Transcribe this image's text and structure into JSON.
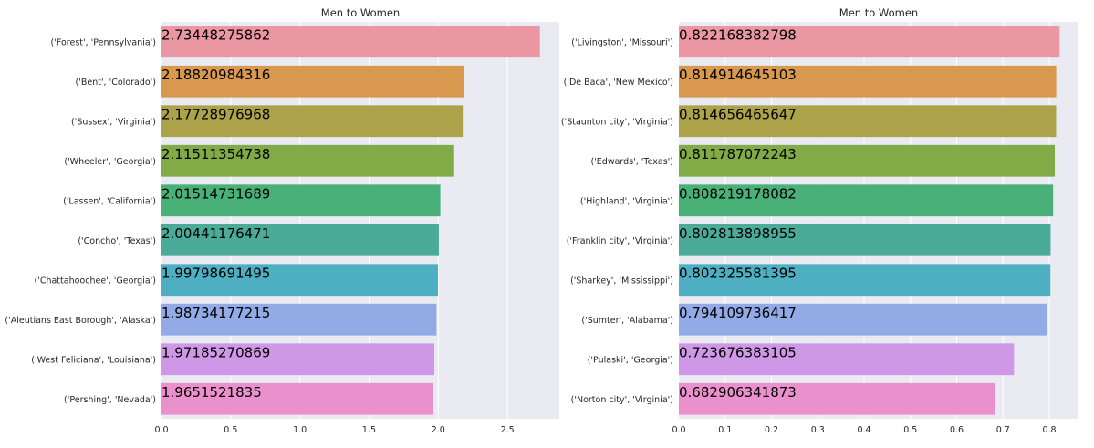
{
  "chart_data": [
    {
      "type": "bar",
      "orientation": "horizontal",
      "title": "Men to Women",
      "xlabel": "",
      "ylabel": "",
      "categories": [
        "('Forest', 'Pennsylvania')",
        "('Bent', 'Colorado')",
        "('Sussex', 'Virginia')",
        "('Wheeler', 'Georgia')",
        "('Lassen', 'California')",
        "('Concho', 'Texas')",
        "('Chattahoochee', 'Georgia')",
        "('Aleutians East Borough', 'Alaska')",
        "('West Feliciana', 'Louisiana')",
        "('Pershing', 'Nevada')"
      ],
      "values": [
        2.73448275862,
        2.18820984316,
        2.17728976968,
        2.11511354738,
        2.01514731689,
        2.00441176471,
        1.99798691495,
        1.98734177215,
        1.97185270869,
        1.9651521835
      ],
      "data_labels": [
        "2.73448275862",
        "2.18820984316",
        "2.17728976968",
        "2.11511354738",
        "2.01514731689",
        "2.00441176471",
        "1.99798691495",
        "1.98734177215",
        "1.97185270869",
        "1.9651521835"
      ],
      "xlim": [
        0,
        2.875
      ],
      "xticks": [
        0.0,
        0.5,
        1.0,
        1.5,
        2.0,
        2.5
      ],
      "xtick_labels": [
        "0.0",
        "0.5",
        "1.0",
        "1.5",
        "2.0",
        "2.5"
      ],
      "grid": true,
      "colors": [
        "#ea96a3",
        "#d8994f",
        "#aca24a",
        "#81ab47",
        "#49b078",
        "#4bab99",
        "#4eaec2",
        "#92abe7",
        "#cf98e7",
        "#ea90cd"
      ]
    },
    {
      "type": "bar",
      "orientation": "horizontal",
      "title": "Men to Women",
      "xlabel": "",
      "ylabel": "",
      "categories": [
        "('Livingston', 'Missouri')",
        "('De Baca', 'New Mexico')",
        "('Staunton city', 'Virginia')",
        "('Edwards', 'Texas')",
        "('Highland', 'Virginia')",
        "('Franklin city', 'Virginia')",
        "('Sharkey', 'Mississippi')",
        "('Sumter', 'Alabama')",
        "('Pulaski', 'Georgia')",
        "('Norton city', 'Virginia')"
      ],
      "values": [
        0.822168382798,
        0.814914645103,
        0.814656465647,
        0.811787072243,
        0.808219178082,
        0.802813898955,
        0.802325581395,
        0.794109736417,
        0.723676383105,
        0.682906341873
      ],
      "data_labels": [
        "0.822168382798",
        "0.814914645103",
        "0.814656465647",
        "0.811787072243",
        "0.808219178082",
        "0.802813898955",
        "0.802325581395",
        "0.794109736417",
        "0.723676383105",
        "0.682906341873"
      ],
      "xlim": [
        0,
        0.863
      ],
      "xticks": [
        0.0,
        0.1,
        0.2,
        0.3,
        0.4,
        0.5,
        0.6,
        0.7,
        0.8
      ],
      "xtick_labels": [
        "0.0",
        "0.1",
        "0.2",
        "0.3",
        "0.4",
        "0.5",
        "0.6",
        "0.7",
        "0.8"
      ],
      "grid": true,
      "colors": [
        "#ea96a3",
        "#d8994f",
        "#aca24a",
        "#81ab47",
        "#49b078",
        "#4bab99",
        "#4eaec2",
        "#92abe7",
        "#cf98e7",
        "#ea90cd"
      ]
    }
  ]
}
